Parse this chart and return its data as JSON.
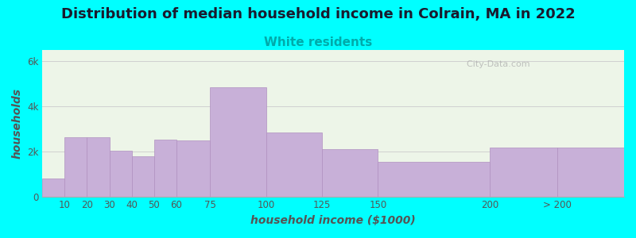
{
  "title": "Distribution of median household income in Colrain, MA in 2022",
  "subtitle": "White residents",
  "xlabel": "household income ($1000)",
  "ylabel": "households",
  "background_color": "#00FFFF",
  "bar_color": "#c8b0d8",
  "bar_edge_color": "#b090c0",
  "bar_left_edges": [
    0,
    10,
    20,
    30,
    40,
    50,
    60,
    75,
    100,
    125,
    150,
    200,
    230
  ],
  "bar_widths": [
    10,
    10,
    10,
    10,
    10,
    10,
    15,
    25,
    25,
    25,
    50,
    30,
    30
  ],
  "values": [
    800,
    2650,
    2650,
    2050,
    1800,
    2550,
    2500,
    4850,
    2850,
    2100,
    1550,
    2200,
    2200
  ],
  "xtick_positions": [
    10,
    20,
    30,
    40,
    50,
    60,
    75,
    100,
    125,
    150,
    200,
    230
  ],
  "xtick_labels": [
    "10",
    "20",
    "30",
    "40",
    "50",
    "60",
    "75",
    "100",
    "125",
    "150",
    "200",
    "> 200"
  ],
  "ylim": [
    0,
    6500
  ],
  "yticks": [
    0,
    2000,
    4000,
    6000
  ],
  "ytick_labels": [
    "0",
    "2k",
    "4k",
    "6k"
  ],
  "title_fontsize": 13,
  "subtitle_fontsize": 11,
  "axis_label_fontsize": 10,
  "tick_fontsize": 8.5,
  "title_color": "#1a1a2e",
  "subtitle_color": "#00aaaa",
  "tick_color": "#555555",
  "watermark": "  City-Data.com",
  "plot_bg_color": "#edf5e8",
  "grid_color": "#d0d0d0"
}
